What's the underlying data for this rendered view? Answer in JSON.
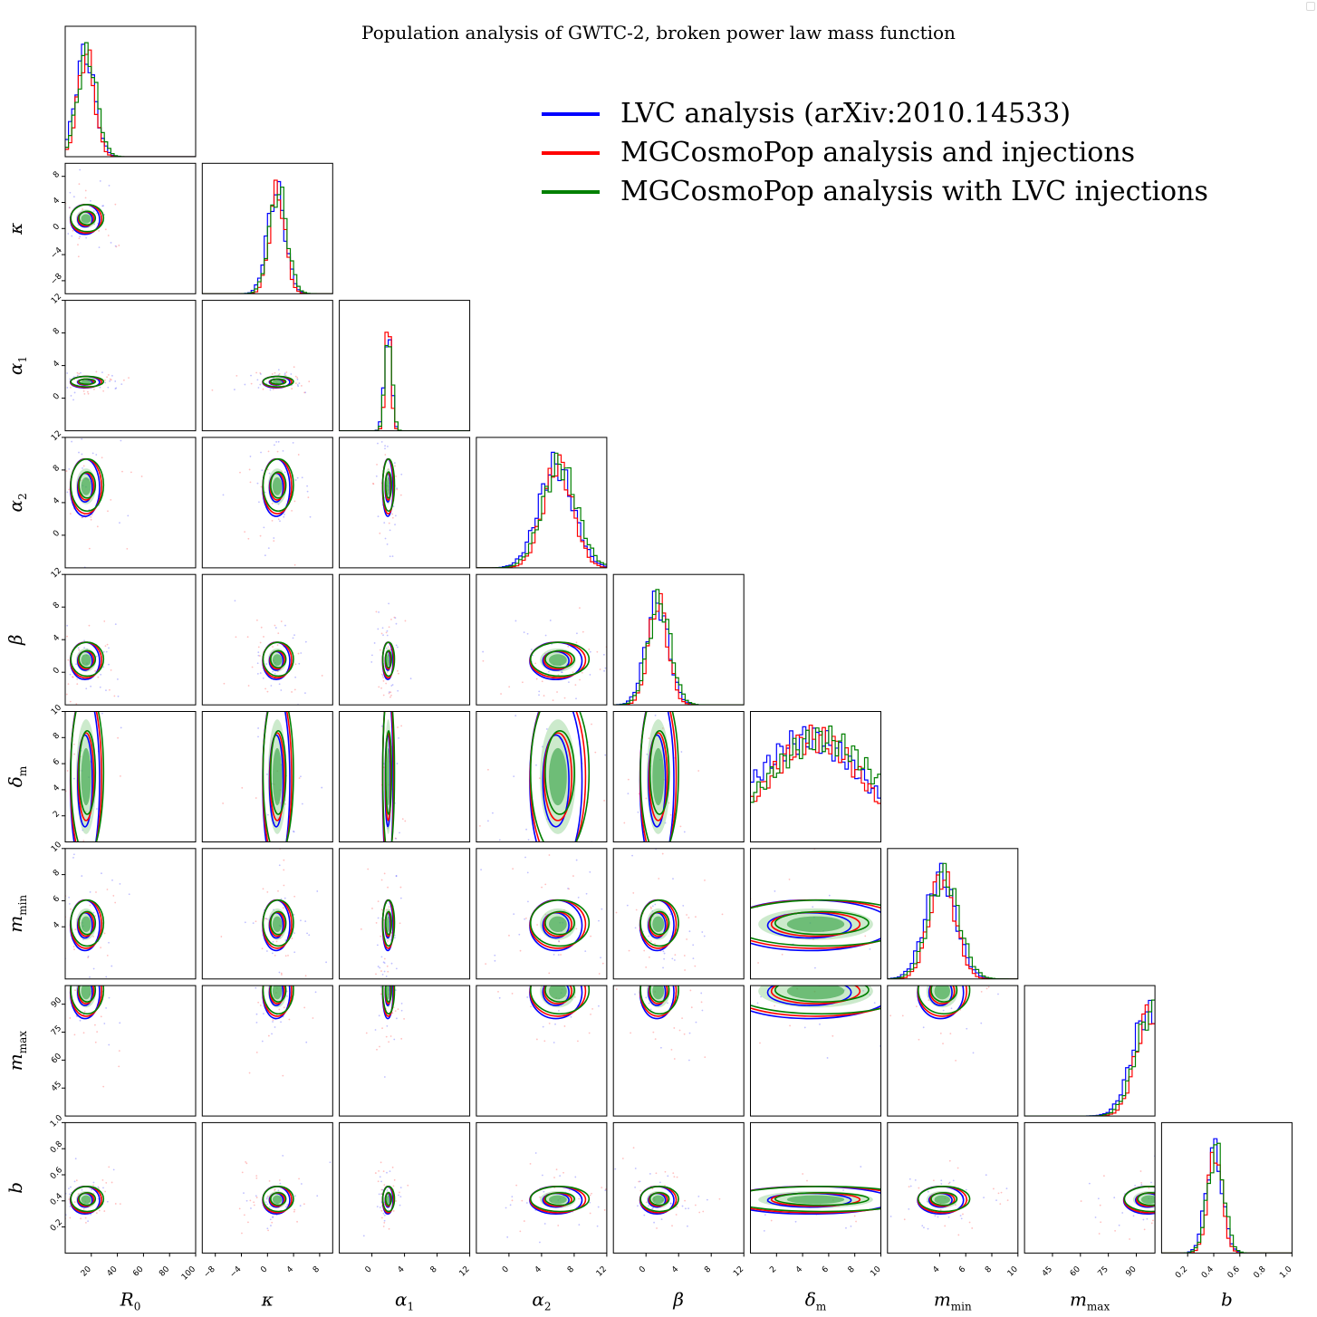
{
  "chart_data": {
    "type": "corner",
    "title": "Population analysis of GWTC-2, broken power law mass function",
    "parameters": [
      {
        "key": "R0",
        "label": "R",
        "sub": "0",
        "range": [
          0,
          100
        ],
        "ticks": [
          20,
          40,
          60,
          80,
          100
        ],
        "peak": 16,
        "width": 7
      },
      {
        "key": "kappa",
        "label": "κ",
        "sub": "",
        "range": [
          -10,
          10
        ],
        "ticks": [
          -8,
          -4,
          0,
          4,
          8
        ],
        "peak": 1.5,
        "width": 1.3
      },
      {
        "key": "alpha1",
        "label": "α",
        "sub": "1",
        "range": [
          -4,
          12
        ],
        "ticks": [
          0,
          4,
          8,
          12
        ],
        "peak": 2,
        "width": 0.4
      },
      {
        "key": "alpha2",
        "label": "α",
        "sub": "2",
        "range": [
          -4,
          12
        ],
        "ticks": [
          0,
          4,
          8,
          12
        ],
        "peak": 6,
        "width": 2
      },
      {
        "key": "beta",
        "label": "β",
        "sub": "",
        "range": [
          -4,
          12
        ],
        "ticks": [
          0,
          4,
          8,
          12
        ],
        "peak": 1.5,
        "width": 1.3
      },
      {
        "key": "delta_m",
        "label": "δ",
        "sub": "m",
        "range": [
          0,
          10
        ],
        "ticks": [
          2,
          4,
          6,
          8,
          10
        ],
        "peak": 5,
        "width": 4
      },
      {
        "key": "m_min",
        "label": "m",
        "sub": "min",
        "range": [
          0,
          10
        ],
        "ticks": [
          4,
          6,
          8,
          10
        ],
        "peak": 4.2,
        "width": 1.1
      },
      {
        "key": "m_max",
        "label": "m",
        "sub": "max",
        "range": [
          30,
          100
        ],
        "ticks": [
          45,
          60,
          75,
          90
        ],
        "peak": 97,
        "width": 8
      },
      {
        "key": "b",
        "label": "b",
        "sub": "",
        "range": [
          0,
          1
        ],
        "ticks": [
          0.2,
          0.4,
          0.6,
          0.8,
          1.0
        ],
        "peak": 0.41,
        "width": 0.06
      }
    ],
    "series": [
      {
        "name": "LVC analysis (arXiv:2010.14533)",
        "color": "#0000ff"
      },
      {
        "name": "MGCosmoPop analysis and injections",
        "color": "#ff0000"
      },
      {
        "name": "MGCosmoPop analysis with LVC injections",
        "color": "#008000"
      }
    ],
    "legend_position": "top-right"
  }
}
